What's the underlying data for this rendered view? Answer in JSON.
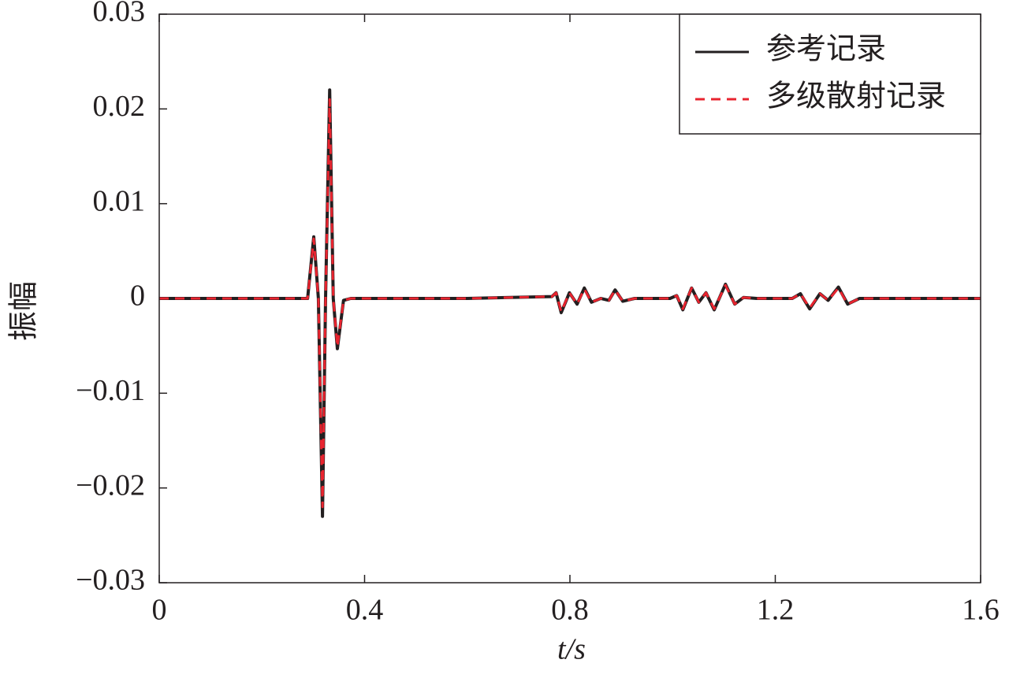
{
  "chart_data": {
    "type": "line",
    "x_label": "t/s",
    "y_label": "振幅",
    "x": [
      0,
      0.2,
      0.289,
      0.301,
      0.31,
      0.318,
      0.324,
      0.332,
      0.339,
      0.347,
      0.359,
      0.373,
      0.6,
      0.765,
      0.773,
      0.783,
      0.799,
      0.814,
      0.828,
      0.842,
      0.86,
      0.876,
      0.888,
      0.903,
      0.926,
      0.995,
      1.008,
      1.02,
      1.037,
      1.051,
      1.065,
      1.081,
      1.103,
      1.121,
      1.138,
      1.164,
      1.233,
      1.249,
      1.267,
      1.287,
      1.303,
      1.323,
      1.341,
      1.364,
      1.6
    ],
    "series": [
      {
        "name": "参考记录",
        "color": "#231f20",
        "dash": false,
        "values": [
          0,
          0,
          0,
          0.0065,
          0,
          -0.023,
          0,
          0.022,
          0,
          -0.0053,
          -0.0002,
          0,
          0,
          0.0002,
          0.0006,
          -0.0015,
          0.0006,
          -0.0006,
          0.0011,
          -0.0004,
          0,
          -0.0002,
          0.0009,
          -0.0003,
          0,
          0,
          0.0003,
          -0.0012,
          0.0011,
          -0.0004,
          0.0006,
          -0.0012,
          0.0015,
          -0.0006,
          0.0001,
          0,
          0,
          0.0005,
          -0.0011,
          0.0005,
          -0.0002,
          0.0012,
          -0.0006,
          0,
          0
        ]
      },
      {
        "name": "多级散射记录",
        "color": "#e8242f",
        "dash": true,
        "values": [
          0,
          0,
          0,
          0.0063,
          0,
          -0.022,
          0,
          0.021,
          0,
          -0.0051,
          -0.0002,
          0,
          0,
          0.0002,
          0.0006,
          -0.0014,
          0.0006,
          -0.0006,
          0.001,
          -0.0004,
          0,
          -0.0002,
          0.0009,
          -0.0003,
          0,
          0,
          0.0003,
          -0.0011,
          0.0011,
          -0.0004,
          0.0006,
          -0.0011,
          0.0014,
          -0.0006,
          0.0001,
          0,
          0,
          0.0005,
          -0.001,
          0.0005,
          -0.0002,
          0.0011,
          -0.0006,
          0,
          0
        ]
      }
    ],
    "xlim": [
      0,
      1.6
    ],
    "xticks": [
      0,
      0.4,
      0.8,
      1.2,
      1.6
    ],
    "ylim": [
      -0.03,
      0.03
    ],
    "yticks": [
      0.03,
      0.02,
      0.01,
      0,
      {
        "value": -0.01,
        "label": "−0.01"
      },
      {
        "value": -0.02,
        "label": "−0.02"
      },
      {
        "value": -0.03,
        "label": "−0.03"
      }
    ],
    "grid": false,
    "legend": "upper right"
  }
}
